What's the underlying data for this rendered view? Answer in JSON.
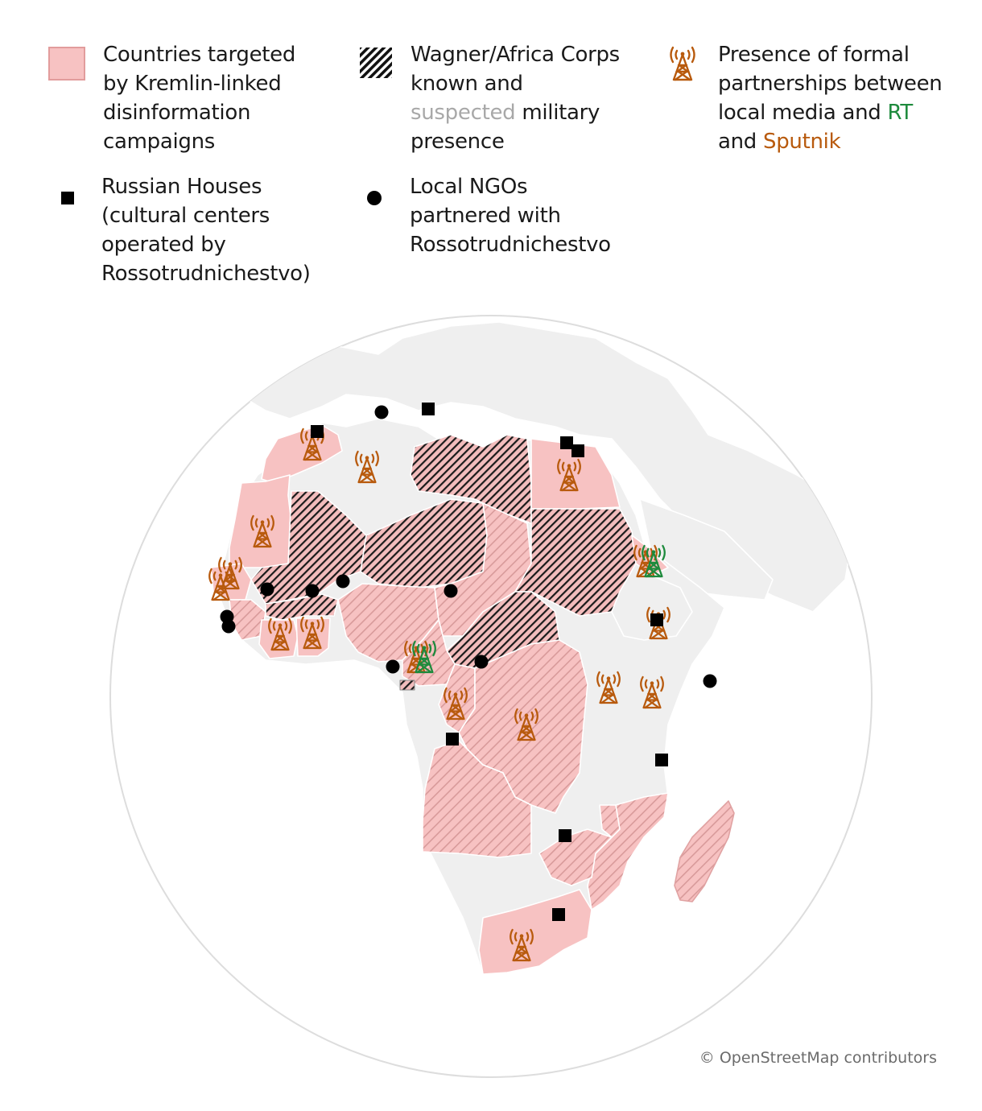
{
  "legend": {
    "targeted": {
      "lines": [
        "Countries targeted",
        "by Kremlin-linked",
        "disinformation",
        "campaigns"
      ],
      "color": "#f7c2c2"
    },
    "wagner": {
      "line1": "Wagner/Africa Corps",
      "line2": "known and",
      "suspected": "suspected",
      "military": " military",
      "line4": "presence"
    },
    "partnerships": {
      "line1": "Presence of formal",
      "line2": "partnerships between",
      "line3_pre": "local media and ",
      "rt": "RT",
      "and": "and ",
      "sputnik": "Sputnik",
      "rt_color": "#1d8a3c",
      "sputnik_color": "#b85a0d"
    },
    "russian_houses": {
      "lines": [
        "Russian Houses",
        "(cultural centers",
        "operated by",
        "Rossotrudnichestvo)"
      ]
    },
    "ngos": {
      "lines": [
        "Local NGOs",
        "partnered with",
        "Rossotrudnichestvo"
      ]
    }
  },
  "credit": "© OpenStreetMap contributors",
  "icons": {
    "russian_house": "square-icon",
    "ngo": "circle-icon",
    "tower": "radio-tower-icon"
  }
}
